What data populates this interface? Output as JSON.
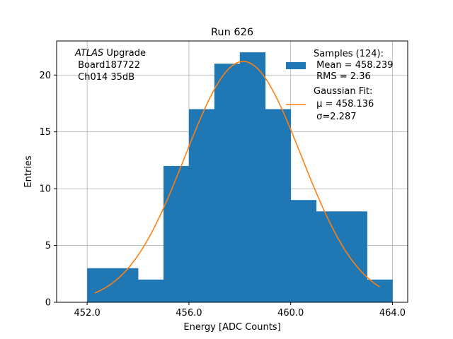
{
  "chart_data": {
    "type": "bar",
    "title": "Run 626",
    "xlabel": "Energy [ADC Counts]",
    "ylabel": "Entries",
    "xlim": [
      450.8,
      464.6
    ],
    "ylim": [
      0,
      23
    ],
    "grid": true,
    "legend_position": "top-right",
    "xticks": [
      452.0,
      456.0,
      460.0,
      464.0
    ],
    "xtick_labels": [
      "452.0",
      "456.0",
      "460.0",
      "464.0"
    ],
    "yticks": [
      0,
      5,
      10,
      15,
      20
    ],
    "ytick_labels": [
      "0",
      "5",
      "10",
      "15",
      "20"
    ],
    "bin_edges": [
      452,
      453,
      454,
      455,
      456,
      457,
      458,
      459,
      460,
      461,
      462,
      463,
      464
    ],
    "counts": [
      3,
      3,
      2,
      12,
      17,
      21,
      22,
      17,
      9,
      8,
      8,
      2
    ],
    "fit": {
      "mu": 458.136,
      "sigma": 2.287,
      "amplitude": 21.2,
      "x_range": [
        452.3,
        463.5
      ]
    },
    "annotation": [
      "ATLAS",
      " Upgrade",
      " Board187722",
      " Ch014 35dB"
    ],
    "legend": {
      "samples_label": [
        "Samples (124):",
        " Mean = 458.239",
        " RMS = 2.36"
      ],
      "fit_label": [
        "Gaussian Fit:",
        " μ = 458.136",
        " σ=2.287"
      ]
    },
    "colors": {
      "bars": "#1f77b4",
      "fit": "#ff7f0e",
      "grid": "#b0b0b0"
    }
  }
}
